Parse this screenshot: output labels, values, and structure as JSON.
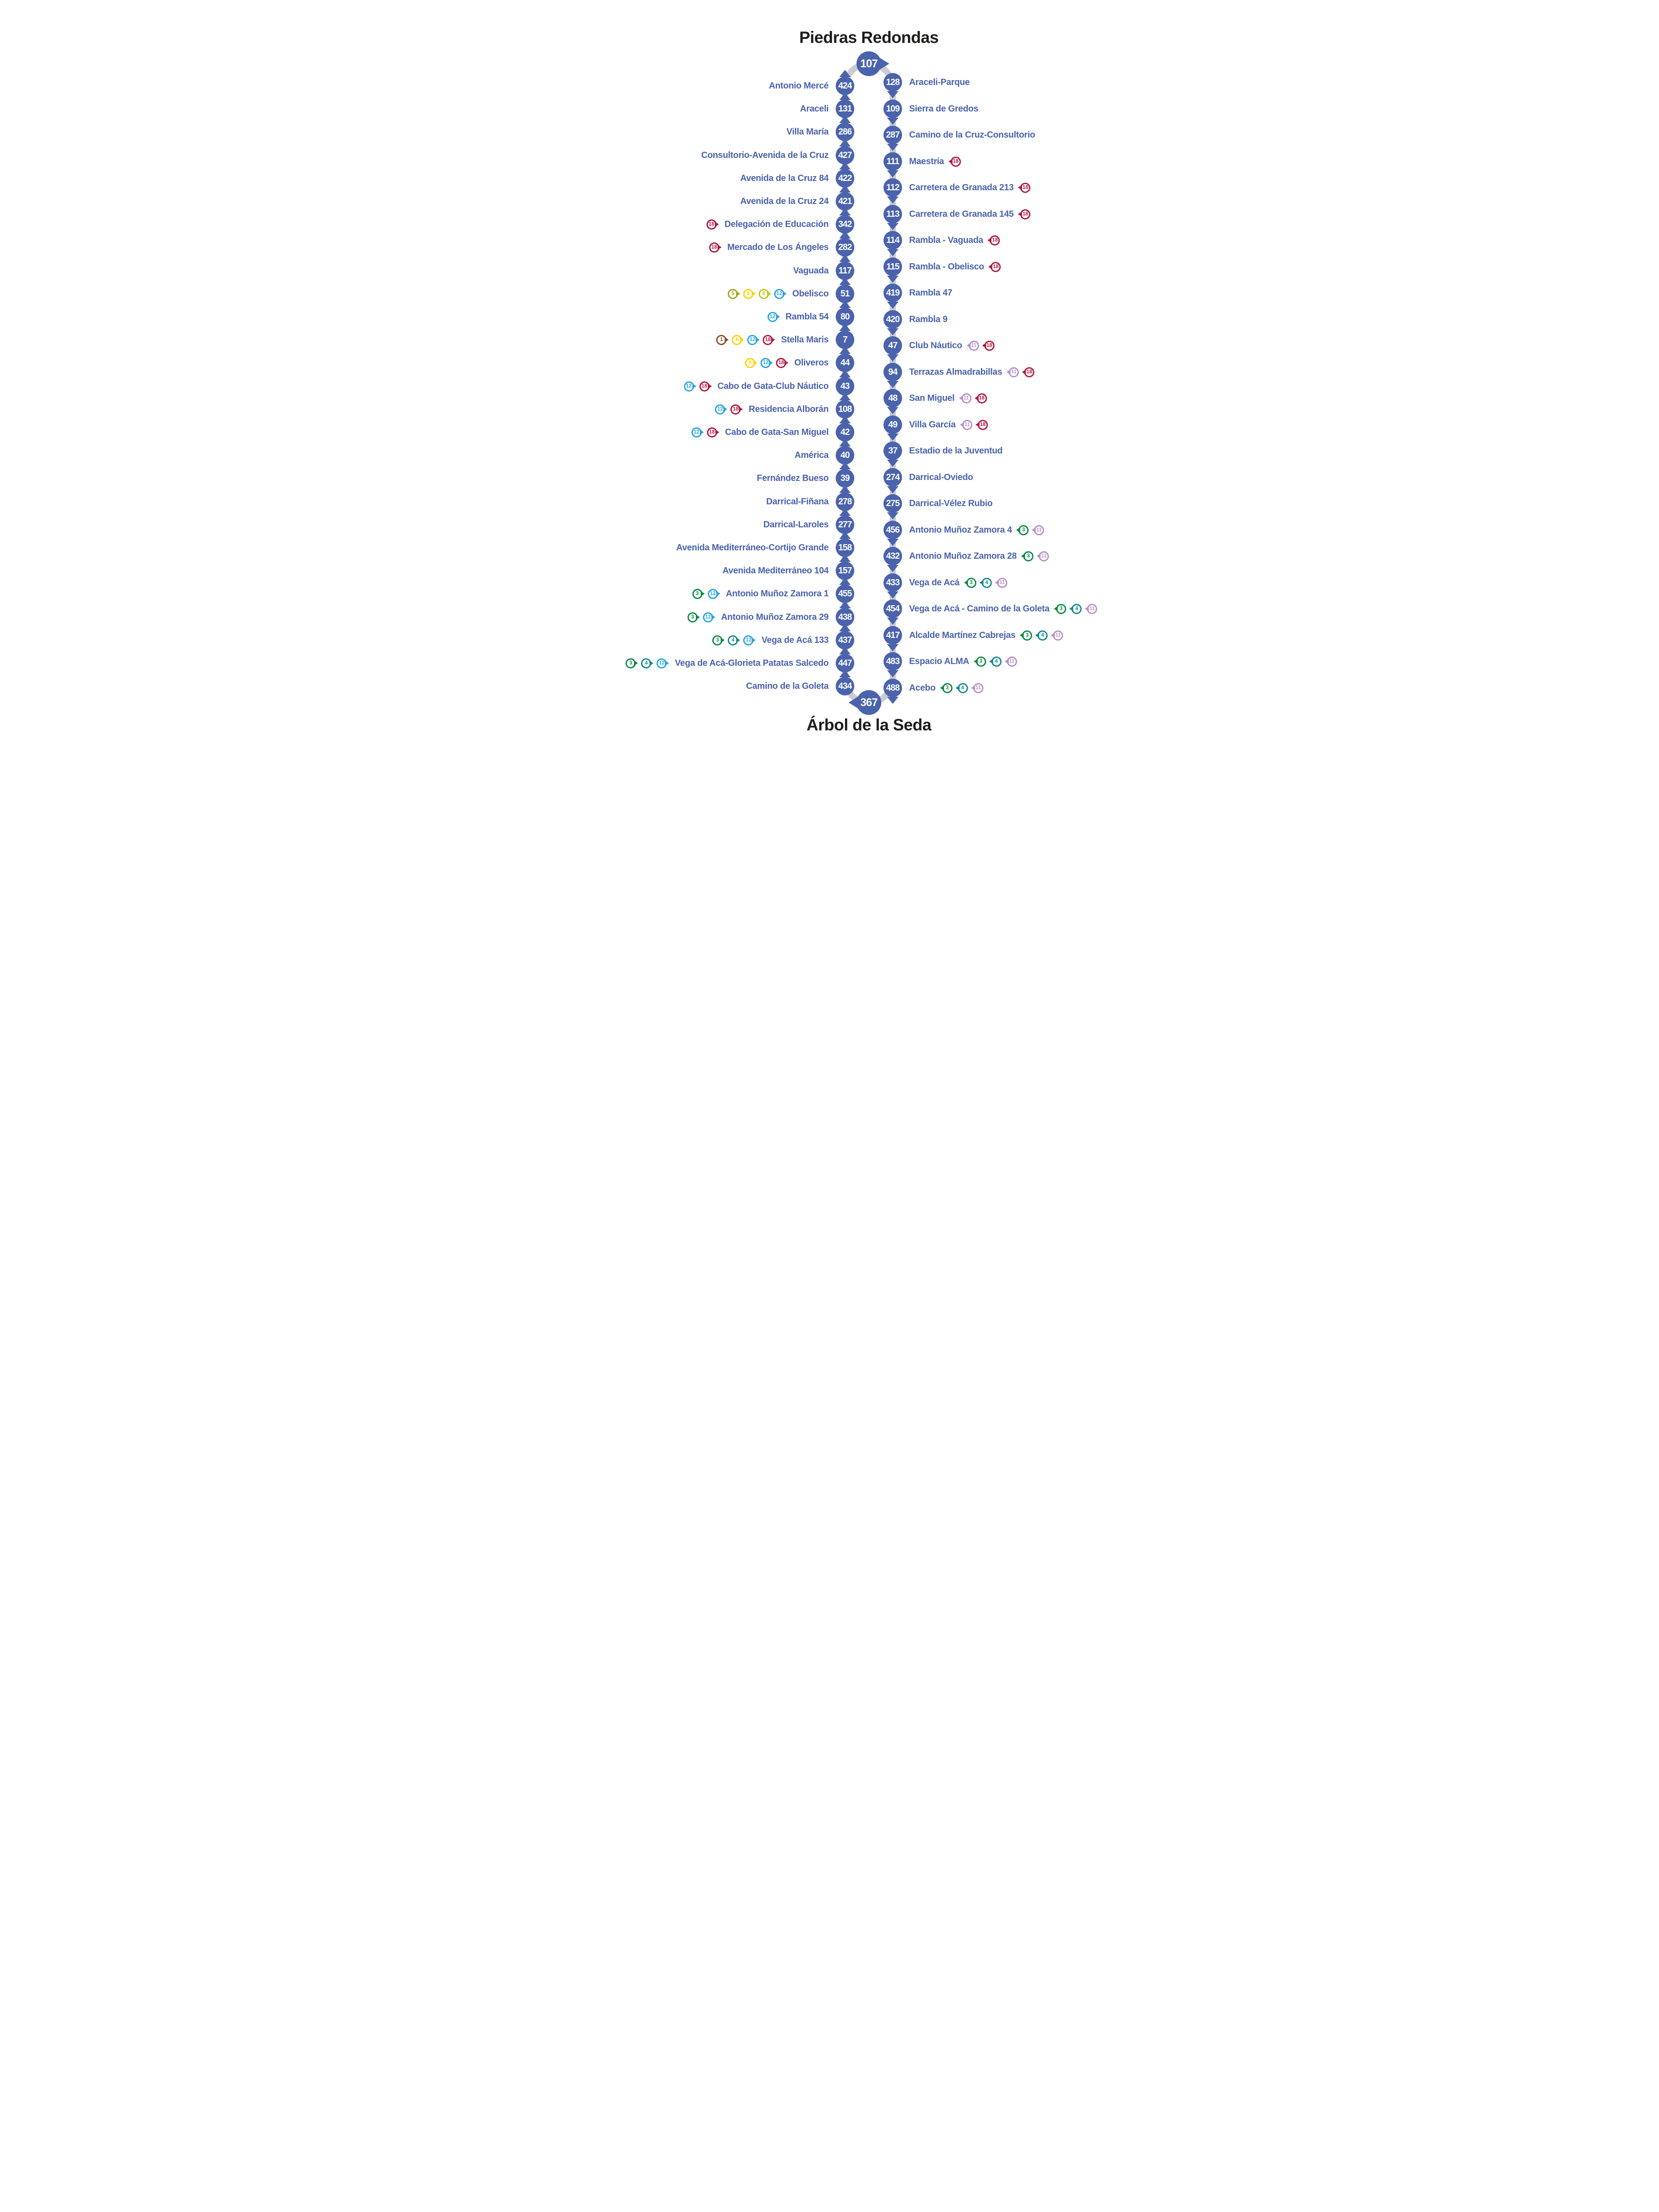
{
  "titles": {
    "top": "Piedras Redondas",
    "bottom": "Árbol de la Seda"
  },
  "terminals": {
    "top_code": "107",
    "bottom_code": "367"
  },
  "colors": {
    "route": "#4a63ac",
    "rail": "#c9ccd1",
    "stop_text": "#4a63ac",
    "title": "#1d1d1b",
    "line1": "#8a4b26",
    "line3": "#0d8a45",
    "line4": "#12898f",
    "line5": "#a3a11b",
    "line6": "#ffd200",
    "line8": "#b2ca11",
    "line11": "#b691c8",
    "line12": "#29a4dc",
    "line18": "#b01840"
  },
  "left_column": {
    "direction": "up",
    "stops": [
      {
        "code": "424",
        "name": "Antonio Mercé",
        "lines": []
      },
      {
        "code": "131",
        "name": "Araceli",
        "lines": []
      },
      {
        "code": "286",
        "name": "Villa María",
        "lines": []
      },
      {
        "code": "427",
        "name": "Consultorio-Avenida de la Cruz",
        "lines": []
      },
      {
        "code": "422",
        "name": "Avenida de la Cruz 84",
        "lines": []
      },
      {
        "code": "421",
        "name": "Avenida de la Cruz 24",
        "lines": []
      },
      {
        "code": "342",
        "name": "Delegación de Educación",
        "lines": [
          18
        ]
      },
      {
        "code": "282",
        "name": "Mercado de Los Ángeles",
        "lines": [
          18
        ]
      },
      {
        "code": "117",
        "name": "Vaguada",
        "lines": []
      },
      {
        "code": "51",
        "name": "Obelisco",
        "lines": [
          5,
          6,
          8,
          12
        ]
      },
      {
        "code": "80",
        "name": "Rambla 54",
        "lines": [
          12
        ]
      },
      {
        "code": "7",
        "name": "Stella Maris",
        "lines": [
          1,
          6,
          12,
          18
        ]
      },
      {
        "code": "44",
        "name": "Oliveros",
        "lines": [
          6,
          12,
          18
        ]
      },
      {
        "code": "43",
        "name": "Cabo de Gata-Club Náutico",
        "lines": [
          12,
          18
        ]
      },
      {
        "code": "108",
        "name": "Residencia Alborán",
        "lines": [
          12,
          18
        ]
      },
      {
        "code": "42",
        "name": "Cabo de Gata-San Miguel",
        "lines": [
          12,
          18
        ]
      },
      {
        "code": "40",
        "name": "América",
        "lines": []
      },
      {
        "code": "39",
        "name": "Fernández Bueso",
        "lines": []
      },
      {
        "code": "278",
        "name": "Darrical-Fiñana",
        "lines": []
      },
      {
        "code": "277",
        "name": "Darrical-Laroles",
        "lines": []
      },
      {
        "code": "158",
        "name": "Avenida Mediterráneo-Cortijo Grande",
        "lines": []
      },
      {
        "code": "157",
        "name": "Avenida Mediterráneo 104",
        "lines": []
      },
      {
        "code": "455",
        "name": "Antonio Muñoz Zamora 1",
        "lines": [
          3,
          12
        ]
      },
      {
        "code": "438",
        "name": "Antonio Muñoz Zamora 29",
        "lines": [
          3,
          12
        ]
      },
      {
        "code": "437",
        "name": "Vega de Acá 133",
        "lines": [
          3,
          4,
          12
        ]
      },
      {
        "code": "447",
        "name": "Vega de Acá-Glorieta Patatas Salcedo",
        "lines": [
          3,
          4,
          12
        ]
      },
      {
        "code": "434",
        "name": "Camino de la Goleta",
        "lines": []
      }
    ]
  },
  "right_column": {
    "direction": "down",
    "stops": [
      {
        "code": "128",
        "name": "Araceli-Parque",
        "lines": []
      },
      {
        "code": "109",
        "name": "Sierra de Gredos",
        "lines": []
      },
      {
        "code": "287",
        "name": "Camino de la Cruz-Consultorio",
        "lines": []
      },
      {
        "code": "111",
        "name": "Maestría",
        "lines": [
          18
        ]
      },
      {
        "code": "112",
        "name": "Carretera de Granada 213",
        "lines": [
          18
        ]
      },
      {
        "code": "113",
        "name": "Carretera de Granada 145",
        "lines": [
          18
        ]
      },
      {
        "code": "114",
        "name": "Rambla - Vaguada",
        "lines": [
          18
        ]
      },
      {
        "code": "115",
        "name": "Rambla - Obelisco",
        "lines": [
          18
        ]
      },
      {
        "code": "419",
        "name": "Rambla 47",
        "lines": []
      },
      {
        "code": "420",
        "name": "Rambla 9",
        "lines": []
      },
      {
        "code": "47",
        "name": "Club Náutico",
        "lines": [
          11,
          18
        ]
      },
      {
        "code": "94",
        "name": "Terrazas Almadrabillas",
        "lines": [
          11,
          18
        ]
      },
      {
        "code": "48",
        "name": "San Miguel",
        "lines": [
          11,
          18
        ]
      },
      {
        "code": "49",
        "name": "Villa García",
        "lines": [
          11,
          18
        ]
      },
      {
        "code": "37",
        "name": "Estadio de la Juventud",
        "lines": []
      },
      {
        "code": "274",
        "name": "Darrical-Oviedo",
        "lines": []
      },
      {
        "code": "275",
        "name": "Darrical-Vélez Rubio",
        "lines": []
      },
      {
        "code": "456",
        "name": "Antonio Muñoz Zamora 4",
        "lines": [
          3,
          11
        ]
      },
      {
        "code": "432",
        "name": "Antonio Muñoz Zamora 28",
        "lines": [
          3,
          11
        ]
      },
      {
        "code": "433",
        "name": "Vega de Acá",
        "lines": [
          3,
          4,
          11
        ]
      },
      {
        "code": "454",
        "name": "Vega de Acá - Camino de la Goleta",
        "lines": [
          3,
          4,
          11
        ]
      },
      {
        "code": "417",
        "name": "Alcalde Martínez Cabrejas",
        "lines": [
          3,
          4,
          11
        ]
      },
      {
        "code": "483",
        "name": "Espacio ALMA",
        "lines": [
          3,
          4,
          11
        ]
      },
      {
        "code": "488",
        "name": "Acebo",
        "lines": [
          3,
          4,
          11
        ]
      }
    ]
  }
}
